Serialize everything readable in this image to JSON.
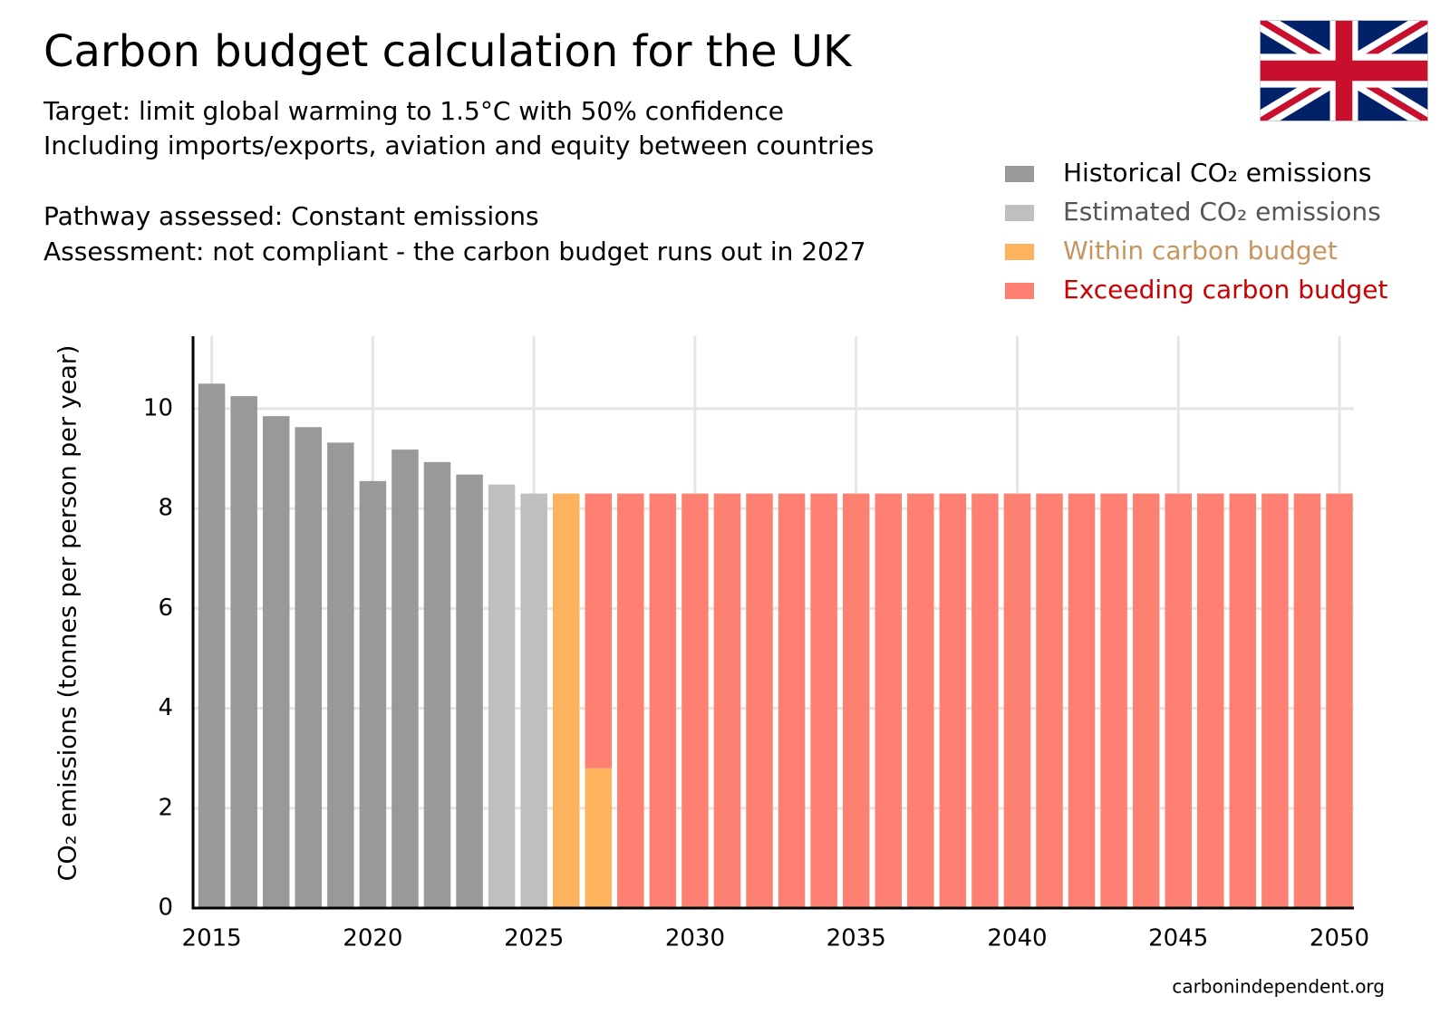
{
  "chart_data": {
    "type": "stacked_bar",
    "title": "Carbon budget calculation for the UK",
    "subtitle": [
      "Target: limit global warming to 1.5°C with 50% confidence",
      "Including imports/exports, aviation and equity between countries"
    ],
    "notes": [
      "Pathway assessed: Constant emissions",
      "Assessment: not compliant - the carbon budget runs out in 2027"
    ],
    "y_label": "CO₂ emissions (tonnes per person per year)",
    "source": "carbonindependent.org",
    "x": [
      2015,
      2016,
      2017,
      2018,
      2019,
      2020,
      2021,
      2022,
      2023,
      2024,
      2025,
      2026,
      2027,
      2028,
      2029,
      2030,
      2031,
      2032,
      2033,
      2034,
      2035,
      2036,
      2037,
      2038,
      2039,
      2040,
      2041,
      2042,
      2043,
      2044,
      2045,
      2046,
      2047,
      2048,
      2049,
      2050
    ],
    "series": [
      {
        "name": "Historical CO₂ emissions",
        "color": "#999999",
        "text_color": "#000000",
        "values": [
          10.5,
          10.25,
          9.85,
          9.63,
          9.32,
          8.55,
          9.18,
          8.93,
          8.68,
          null,
          null,
          null,
          null,
          null,
          null,
          null,
          null,
          null,
          null,
          null,
          null,
          null,
          null,
          null,
          null,
          null,
          null,
          null,
          null,
          null,
          null,
          null,
          null,
          null,
          null,
          null
        ]
      },
      {
        "name": "Estimated CO₂ emissions",
        "color": "#bfbfbf",
        "text_color": "#555555",
        "values": [
          null,
          null,
          null,
          null,
          null,
          null,
          null,
          null,
          null,
          8.48,
          8.3,
          null,
          null,
          null,
          null,
          null,
          null,
          null,
          null,
          null,
          null,
          null,
          null,
          null,
          null,
          null,
          null,
          null,
          null,
          null,
          null,
          null,
          null,
          null,
          null,
          null
        ]
      },
      {
        "name": "Within carbon budget",
        "color": "#fdb25d",
        "text_color": "#c8955e",
        "values": [
          null,
          null,
          null,
          null,
          null,
          null,
          null,
          null,
          null,
          null,
          null,
          8.3,
          2.8,
          null,
          null,
          null,
          null,
          null,
          null,
          null,
          null,
          null,
          null,
          null,
          null,
          null,
          null,
          null,
          null,
          null,
          null,
          null,
          null,
          null,
          null,
          null
        ]
      },
      {
        "name": "Exceeding carbon budget",
        "color": "#fd8073",
        "text_color": "#cc0000",
        "values": [
          null,
          null,
          null,
          null,
          null,
          null,
          null,
          null,
          null,
          null,
          null,
          null,
          5.5,
          8.3,
          8.3,
          8.3,
          8.3,
          8.3,
          8.3,
          8.3,
          8.3,
          8.3,
          8.3,
          8.3,
          8.3,
          8.3,
          8.3,
          8.3,
          8.3,
          8.3,
          8.3,
          8.3,
          8.3,
          8.3,
          8.3,
          8.3
        ]
      }
    ],
    "xlim": [
      2014.42,
      2050.45
    ],
    "xticks": [
      2015,
      2020,
      2025,
      2030,
      2035,
      2040,
      2045,
      2050
    ],
    "ylim": [
      0,
      11.45
    ],
    "yticks": [
      0,
      2,
      4,
      6,
      8,
      10
    ],
    "grid": true,
    "legend": "top-right"
  }
}
